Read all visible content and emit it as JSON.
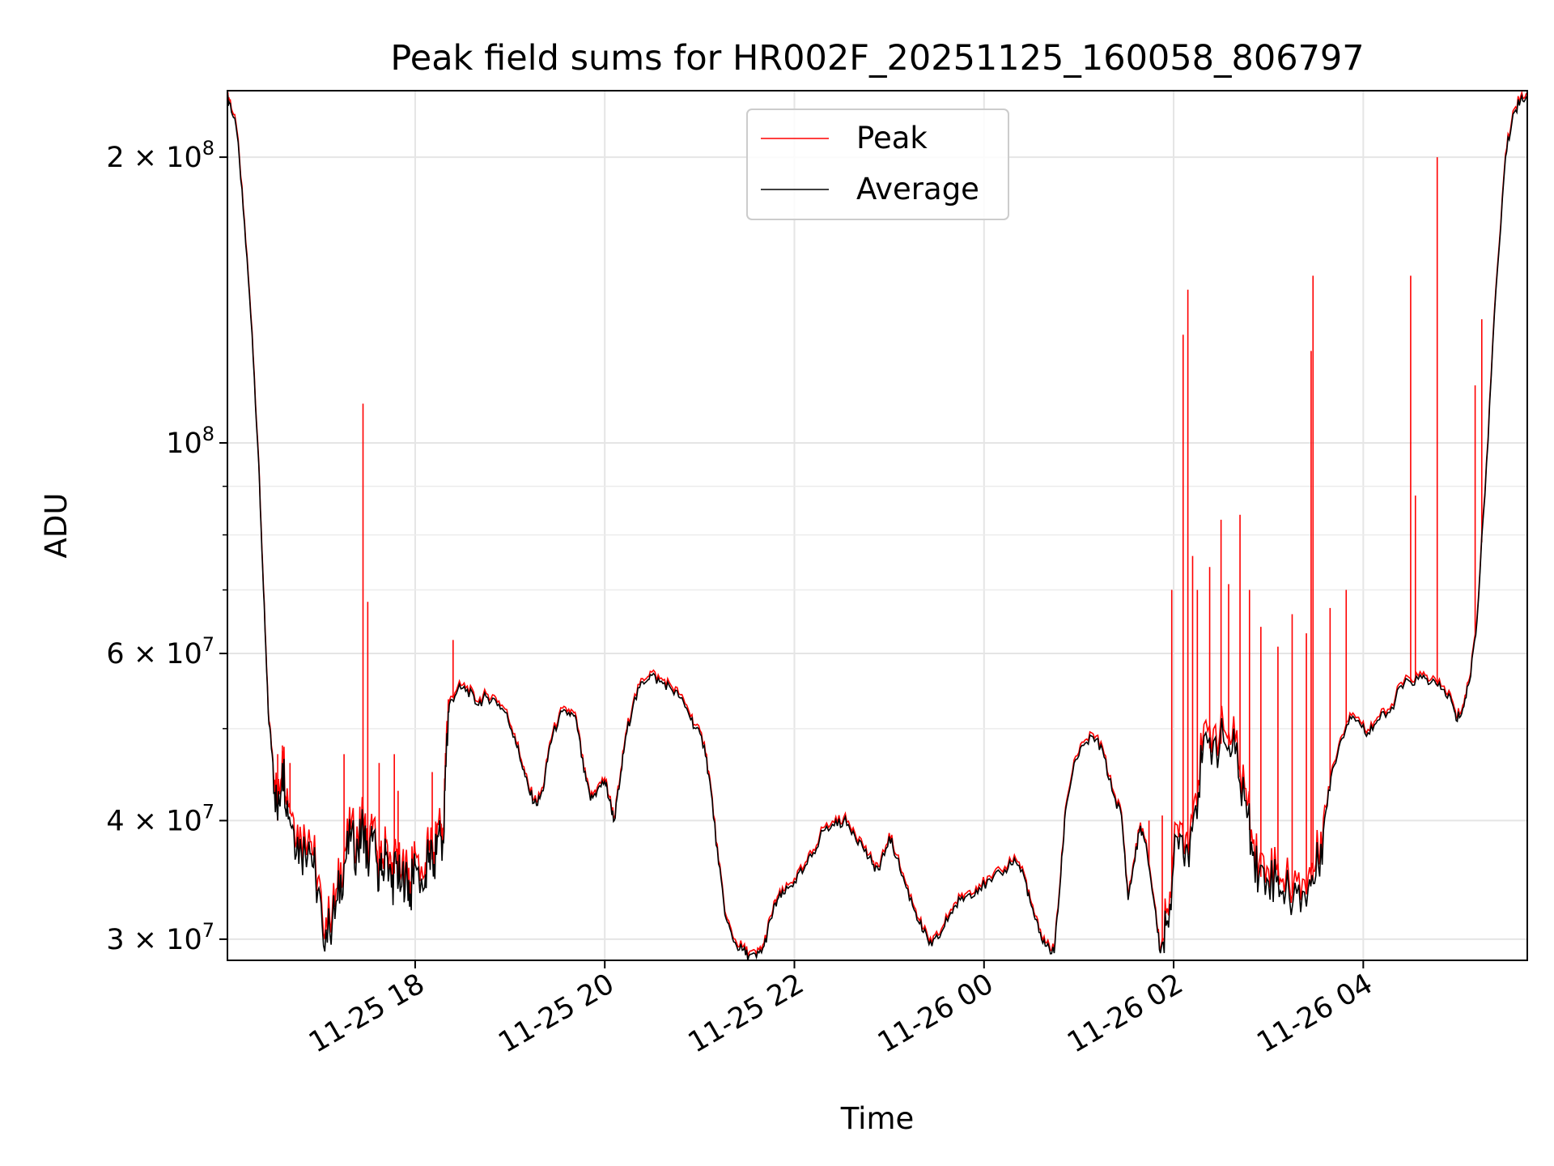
{
  "chart_data": {
    "type": "line",
    "title": "Peak field sums for HR002F_20251125_160058_806797",
    "xlabel": "Time",
    "ylabel": "ADU",
    "y_scale": "log",
    "ylim": [
      28500000,
      235000000
    ],
    "xlim_hours_from_midnight_11_25": [
      16.02,
      29.73
    ],
    "grid": true,
    "legend_position": "upper center",
    "x_ticks": [
      {
        "hour": 18,
        "label": "11-25 18"
      },
      {
        "hour": 20,
        "label": "11-25 20"
      },
      {
        "hour": 22,
        "label": "11-25 22"
      },
      {
        "hour": 24,
        "label": "11-26 00"
      },
      {
        "hour": 26,
        "label": "11-26 02"
      },
      {
        "hour": 28,
        "label": "11-26 04"
      }
    ],
    "y_ticks": [
      {
        "value": 30000000,
        "mantissa": "3",
        "exponent": "7"
      },
      {
        "value": 40000000,
        "mantissa": "4",
        "exponent": "7"
      },
      {
        "value": 60000000,
        "mantissa": "6",
        "exponent": "7"
      },
      {
        "value": 100000000,
        "mantissa": "",
        "exponent": "8"
      },
      {
        "value": 200000000,
        "mantissa": "2",
        "exponent": "8"
      }
    ],
    "y_minor_ticks": [
      50000000,
      70000000,
      80000000,
      90000000
    ],
    "tick_base": "10",
    "times_sign": "×",
    "series": [
      {
        "name": "Average",
        "color": "#000000",
        "points": [
          [
            16.02,
            230000000
          ],
          [
            16.05,
            228000000
          ],
          [
            16.12,
            212000000
          ],
          [
            16.2,
            170000000
          ],
          [
            16.28,
            130000000
          ],
          [
            16.35,
            95000000
          ],
          [
            16.4,
            70000000
          ],
          [
            16.45,
            52000000
          ],
          [
            16.5,
            46000000
          ],
          [
            16.55,
            40000000
          ],
          [
            16.6,
            46000000
          ],
          [
            16.65,
            42000000
          ],
          [
            16.72,
            39000000
          ],
          [
            16.8,
            37000000
          ],
          [
            16.88,
            38000000
          ],
          [
            16.95,
            35000000
          ],
          [
            17.02,
            31000000
          ],
          [
            17.1,
            30500000
          ],
          [
            17.18,
            33000000
          ],
          [
            17.25,
            36000000
          ],
          [
            17.32,
            38000000
          ],
          [
            17.4,
            37000000
          ],
          [
            17.45,
            40000000
          ],
          [
            17.5,
            36000000
          ],
          [
            17.55,
            38000000
          ],
          [
            17.6,
            36000000
          ],
          [
            17.65,
            35000000
          ],
          [
            17.7,
            37000000
          ],
          [
            17.75,
            34000000
          ],
          [
            17.8,
            36000000
          ],
          [
            17.85,
            34000000
          ],
          [
            17.9,
            35500000
          ],
          [
            17.95,
            33500000
          ],
          [
            18.0,
            36000000
          ],
          [
            18.1,
            34000000
          ],
          [
            18.15,
            37000000
          ],
          [
            18.2,
            36000000
          ],
          [
            18.25,
            39000000
          ],
          [
            18.3,
            38000000
          ],
          [
            18.33,
            48000000
          ],
          [
            18.36,
            53000000
          ],
          [
            18.45,
            55000000
          ],
          [
            18.55,
            55000000
          ],
          [
            18.65,
            53000000
          ],
          [
            18.75,
            54000000
          ],
          [
            18.85,
            53500000
          ],
          [
            18.95,
            52000000
          ],
          [
            19.05,
            49000000
          ],
          [
            19.12,
            46000000
          ],
          [
            19.2,
            43000000
          ],
          [
            19.28,
            41500000
          ],
          [
            19.35,
            43000000
          ],
          [
            19.42,
            48000000
          ],
          [
            19.52,
            51500000
          ],
          [
            19.62,
            52000000
          ],
          [
            19.7,
            51000000
          ],
          [
            19.78,
            45000000
          ],
          [
            19.85,
            42000000
          ],
          [
            19.92,
            43000000
          ],
          [
            20.0,
            44000000
          ],
          [
            20.05,
            42000000
          ],
          [
            20.1,
            40000000
          ],
          [
            20.16,
            44000000
          ],
          [
            20.22,
            49000000
          ],
          [
            20.3,
            53000000
          ],
          [
            20.4,
            56000000
          ],
          [
            20.48,
            57000000
          ],
          [
            20.58,
            56000000
          ],
          [
            20.68,
            55500000
          ],
          [
            20.78,
            54000000
          ],
          [
            20.88,
            52000000
          ],
          [
            20.96,
            50000000
          ],
          [
            21.05,
            48000000
          ],
          [
            21.12,
            43000000
          ],
          [
            21.2,
            36000000
          ],
          [
            21.28,
            31500000
          ],
          [
            21.36,
            29800000
          ],
          [
            21.45,
            29200000
          ],
          [
            21.52,
            28800000
          ],
          [
            21.6,
            28700000
          ],
          [
            21.68,
            29500000
          ],
          [
            21.75,
            31500000
          ],
          [
            21.82,
            33000000
          ],
          [
            21.9,
            33500000
          ],
          [
            22.0,
            34500000
          ],
          [
            22.1,
            35500000
          ],
          [
            22.2,
            37000000
          ],
          [
            22.3,
            39000000
          ],
          [
            22.42,
            39500000
          ],
          [
            22.52,
            40000000
          ],
          [
            22.62,
            39000000
          ],
          [
            22.72,
            37500000
          ],
          [
            22.82,
            36000000
          ],
          [
            22.9,
            35500000
          ],
          [
            23.0,
            38500000
          ],
          [
            23.08,
            36500000
          ],
          [
            23.18,
            34000000
          ],
          [
            23.28,
            32000000
          ],
          [
            23.36,
            30500000
          ],
          [
            23.45,
            29500000
          ],
          [
            23.55,
            30500000
          ],
          [
            23.65,
            32000000
          ],
          [
            23.75,
            33000000
          ],
          [
            23.85,
            33500000
          ],
          [
            23.95,
            34000000
          ],
          [
            24.08,
            34500000
          ],
          [
            24.22,
            35500000
          ],
          [
            24.32,
            36500000
          ],
          [
            24.42,
            35000000
          ],
          [
            24.5,
            32500000
          ],
          [
            24.58,
            30500000
          ],
          [
            24.66,
            29500000
          ],
          [
            24.74,
            29000000
          ],
          [
            24.8,
            34000000
          ],
          [
            24.86,
            41000000
          ],
          [
            24.95,
            46000000
          ],
          [
            25.05,
            48000000
          ],
          [
            25.15,
            49000000
          ],
          [
            25.25,
            47500000
          ],
          [
            25.35,
            43000000
          ],
          [
            25.45,
            40500000
          ],
          [
            25.52,
            33000000
          ],
          [
            25.58,
            36000000
          ],
          [
            25.65,
            39500000
          ],
          [
            25.72,
            37000000
          ],
          [
            25.8,
            32500000
          ],
          [
            25.86,
            29000000
          ],
          [
            25.92,
            31000000
          ],
          [
            26.0,
            36000000
          ],
          [
            26.08,
            38500000
          ],
          [
            26.15,
            37000000
          ],
          [
            26.22,
            41000000
          ],
          [
            26.3,
            46000000
          ],
          [
            26.42,
            48500000
          ],
          [
            26.55,
            48000000
          ],
          [
            26.65,
            47000000
          ],
          [
            26.75,
            42000000
          ],
          [
            26.82,
            38000000
          ],
          [
            26.9,
            35000000
          ],
          [
            27.0,
            34500000
          ],
          [
            27.1,
            35000000
          ],
          [
            27.18,
            33500000
          ],
          [
            27.3,
            33500000
          ],
          [
            27.42,
            34000000
          ],
          [
            27.5,
            35000000
          ],
          [
            27.58,
            39000000
          ],
          [
            27.66,
            44500000
          ],
          [
            27.76,
            48500000
          ],
          [
            27.86,
            51500000
          ],
          [
            27.95,
            51000000
          ],
          [
            28.05,
            49500000
          ],
          [
            28.15,
            51000000
          ],
          [
            28.28,
            52000000
          ],
          [
            28.4,
            55500000
          ],
          [
            28.5,
            56000000
          ],
          [
            28.62,
            56500000
          ],
          [
            28.72,
            56000000
          ],
          [
            28.82,
            55000000
          ],
          [
            28.92,
            54000000
          ],
          [
            28.98,
            51000000
          ],
          [
            29.05,
            52500000
          ],
          [
            29.12,
            56000000
          ],
          [
            29.2,
            65000000
          ],
          [
            29.3,
            95000000
          ],
          [
            29.4,
            145000000
          ],
          [
            29.5,
            200000000
          ],
          [
            29.58,
            222000000
          ],
          [
            29.66,
            230000000
          ],
          [
            29.73,
            232000000
          ]
        ]
      },
      {
        "name": "Peak",
        "color": "#ff0000",
        "spikes": [
          [
            16.55,
            47000000
          ],
          [
            16.6,
            48000000
          ],
          [
            16.68,
            46000000
          ],
          [
            17.25,
            47000000
          ],
          [
            17.45,
            110000000
          ],
          [
            17.5,
            68000000
          ],
          [
            17.62,
            46000000
          ],
          [
            17.78,
            47000000
          ],
          [
            17.82,
            43000000
          ],
          [
            18.18,
            45000000
          ],
          [
            18.4,
            62000000
          ],
          [
            25.74,
            40000000
          ],
          [
            25.88,
            40500000
          ],
          [
            25.98,
            70000000
          ],
          [
            26.1,
            130000000
          ],
          [
            26.15,
            145000000
          ],
          [
            26.2,
            76000000
          ],
          [
            26.25,
            70000000
          ],
          [
            26.38,
            74000000
          ],
          [
            26.5,
            83000000
          ],
          [
            26.58,
            71000000
          ],
          [
            26.7,
            84000000
          ],
          [
            26.8,
            70000000
          ],
          [
            26.92,
            64000000
          ],
          [
            27.1,
            61000000
          ],
          [
            27.25,
            66000000
          ],
          [
            27.4,
            63000000
          ],
          [
            27.45,
            125000000
          ],
          [
            27.47,
            150000000
          ],
          [
            27.65,
            67000000
          ],
          [
            27.82,
            70000000
          ],
          [
            28.5,
            150000000
          ],
          [
            28.55,
            88000000
          ],
          [
            28.78,
            200000000
          ],
          [
            29.18,
            115000000
          ],
          [
            29.25,
            135000000
          ]
        ]
      }
    ]
  }
}
